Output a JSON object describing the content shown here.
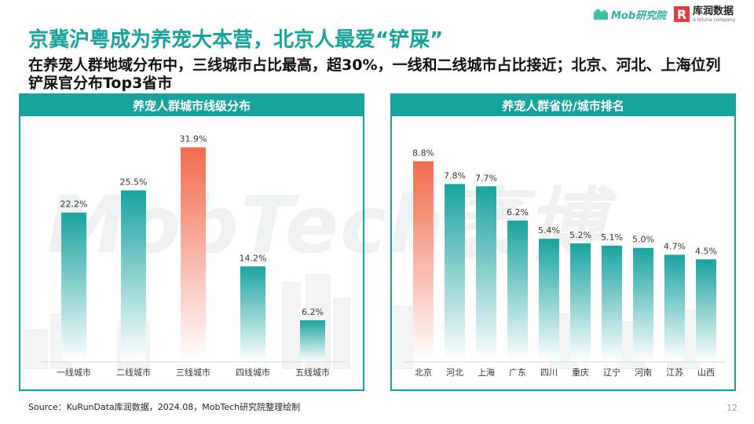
{
  "header": {
    "title": "京冀沪粤成为养宠大本营，北京人最爱“铲屎”",
    "subtitle": "在养宠人群地域分布中，三线城市占比最高，超30%，一线和二线城市占比接近；北京、河北、上海位列铲屎官分布Top3省市"
  },
  "logos": {
    "mob": {
      "text": "Mob研究院",
      "icon": "mob-mountain-icon"
    },
    "kurun": {
      "mark": "R",
      "text": "库润数据",
      "sub": "a toluna company",
      "icon": "kurun-r-icon"
    }
  },
  "watermark": "MobTech袤博",
  "colors": {
    "accent": "#16a39b",
    "highlight": "#f26b4d",
    "teal_bar": "#1aa3a0"
  },
  "chart_data": [
    {
      "type": "bar",
      "title": "养宠人群城市线级分布",
      "categories": [
        "一线城市",
        "二线城市",
        "三线城市",
        "四线城市",
        "五线城市"
      ],
      "values": [
        22.2,
        25.5,
        31.9,
        14.2,
        6.2
      ],
      "labels": [
        "22.2%",
        "25.5%",
        "31.9%",
        "14.2%",
        "6.2%"
      ],
      "highlight_index": 2,
      "ylim": [
        0,
        35
      ],
      "xlabel": "",
      "ylabel": "",
      "grid": false
    },
    {
      "type": "bar",
      "title": "养宠人群省份/城市排名",
      "categories": [
        "北京",
        "河北",
        "上海",
        "广东",
        "四川",
        "重庆",
        "辽宁",
        "河南",
        "江苏",
        "山西"
      ],
      "values": [
        8.8,
        7.8,
        7.7,
        6.2,
        5.4,
        5.2,
        5.1,
        5.0,
        4.7,
        4.5
      ],
      "labels": [
        "8.8%",
        "7.8%",
        "7.7%",
        "6.2%",
        "5.4%",
        "5.2%",
        "5.1%",
        "5.0%",
        "4.7%",
        "4.5%"
      ],
      "highlight_index": 0,
      "ylim": [
        0,
        9.5
      ],
      "xlabel": "",
      "ylabel": "",
      "grid": false
    }
  ],
  "footer": {
    "source": "Source：KuRunData库润数据，2024.08，MobTech研究院整理绘制",
    "page": "12"
  }
}
